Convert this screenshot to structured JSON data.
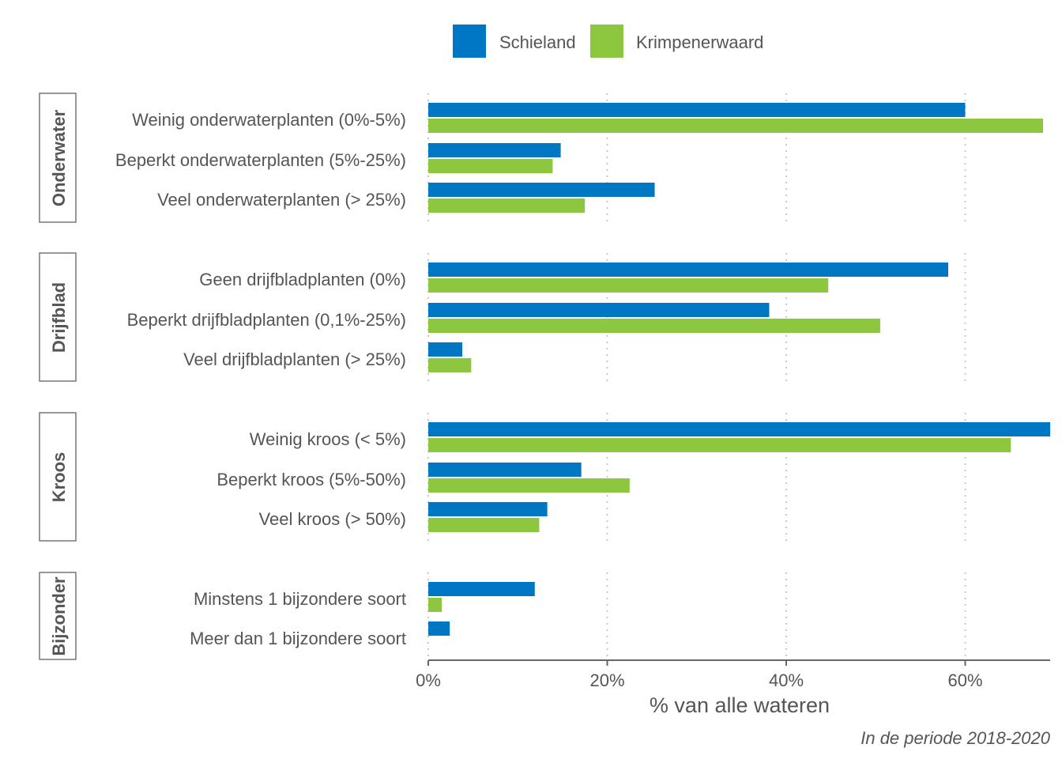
{
  "chart_data": {
    "type": "bar",
    "orientation": "horizontal",
    "legend": {
      "position": "top",
      "entries": [
        "Schieland",
        "Krimpenerwaard"
      ]
    },
    "colors": {
      "Schieland": "#0077c2",
      "Krimpenerwaard": "#8dc63f"
    },
    "xlabel": "% van alle wateren",
    "caption": "In de periode 2018-2020",
    "xlim": [
      0,
      69.5
    ],
    "xticks": [
      0,
      20,
      40,
      60
    ],
    "xtick_labels": [
      "0%",
      "20%",
      "40%",
      "60%"
    ],
    "grid": "vertical dotted",
    "facets": [
      {
        "label": "Onderwater",
        "categories": [
          {
            "label": "Weinig onderwaterplanten (0%-5%)",
            "Schieland": 60.0,
            "Krimpenerwaard": 68.7
          },
          {
            "label": "Beperkt onderwaterplanten (5%-25%)",
            "Schieland": 14.8,
            "Krimpenerwaard": 13.9
          },
          {
            "label": "Veel onderwaterplanten (> 25%)",
            "Schieland": 25.3,
            "Krimpenerwaard": 17.5
          }
        ]
      },
      {
        "label": "Drijfblad",
        "categories": [
          {
            "label": "Geen drijfbladplanten (0%)",
            "Schieland": 58.1,
            "Krimpenerwaard": 44.7
          },
          {
            "label": "Beperkt drijfbladplanten (0,1%-25%)",
            "Schieland": 38.1,
            "Krimpenerwaard": 50.5
          },
          {
            "label": "Veel drijfbladplanten (> 25%)",
            "Schieland": 3.8,
            "Krimpenerwaard": 4.8
          }
        ]
      },
      {
        "label": "Kroos",
        "categories": [
          {
            "label": "Weinig kroos (< 5%)",
            "Schieland": 69.5,
            "Krimpenerwaard": 65.1
          },
          {
            "label": "Beperkt kroos (5%-50%)",
            "Schieland": 17.1,
            "Krimpenerwaard": 22.5
          },
          {
            "label": "Veel kroos (> 50%)",
            "Schieland": 13.3,
            "Krimpenerwaard": 12.4
          }
        ]
      },
      {
        "label": "Bijzonder",
        "categories": [
          {
            "label": "Minstens 1 bijzondere soort",
            "Schieland": 11.9,
            "Krimpenerwaard": 1.5
          },
          {
            "label": "Meer dan 1 bijzondere soort",
            "Schieland": 2.4,
            "Krimpenerwaard": 0
          }
        ]
      }
    ]
  }
}
